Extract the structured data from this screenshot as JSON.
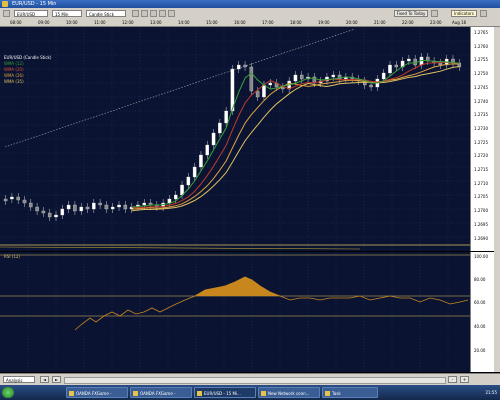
{
  "window": {
    "title": "EUR/USD - 15 Min"
  },
  "toolbar": {
    "symbol": "EUR/USD",
    "timeframe": "15 Min",
    "chart_type": "Candle Stick",
    "fixed_to_today": "Fixed To Today",
    "indicators": "Indicators"
  },
  "time_axis": {
    "labels": [
      "08:00",
      "09:00",
      "10:00",
      "11:00",
      "12:00",
      "13:00",
      "14:00",
      "15:00",
      "16:00",
      "17:00",
      "18:00",
      "19:00",
      "20:00",
      "21:00",
      "22:00",
      "23:00",
      "Aug 16"
    ]
  },
  "legend": {
    "items": [
      {
        "label": "EUR/USD (Candle Stick)",
        "color": "#ffffff"
      },
      {
        "label": "WMA (12)",
        "color": "#3aa03a"
      },
      {
        "label": "WMA (20)",
        "color": "#c0392b"
      },
      {
        "label": "WMA (26)",
        "color": "#e0a040"
      },
      {
        "label": "WMA (35)",
        "color": "#e0c060"
      }
    ]
  },
  "price_axis": {
    "labels": [
      "1.2765",
      "1.2760",
      "1.2755",
      "1.2750",
      "1.2745",
      "1.2740",
      "1.2735",
      "1.2730",
      "1.2725",
      "1.2720",
      "1.2715",
      "1.2710",
      "1.2705",
      "1.2700",
      "1.2695",
      "1.2690"
    ]
  },
  "rsi_panel": {
    "label": "RSI (12)",
    "axis_labels": [
      "100.00",
      "80.00",
      "60.00",
      "40.00",
      "20.00"
    ],
    "upper_level": 70,
    "lower_level": 30
  },
  "bottom": {
    "mode": "Analysis",
    "scroll_hint": "◄ ►"
  },
  "taskbar": {
    "items": [
      "OANDA FXGame -",
      "OANDA FXGame -",
      "EUR/USD - 15 Mi...",
      "New Network conn...",
      "Task"
    ],
    "clock": "21:55"
  },
  "colors": {
    "chart_bg": "#0a1432",
    "candle_up": "#ffffff",
    "candle_down": "#888888",
    "wma12": "#3aa03a",
    "wma20": "#c0392b",
    "wma26": "#e0a040",
    "wma35": "#e0c060",
    "rsi_fill": "#c8861e"
  }
}
